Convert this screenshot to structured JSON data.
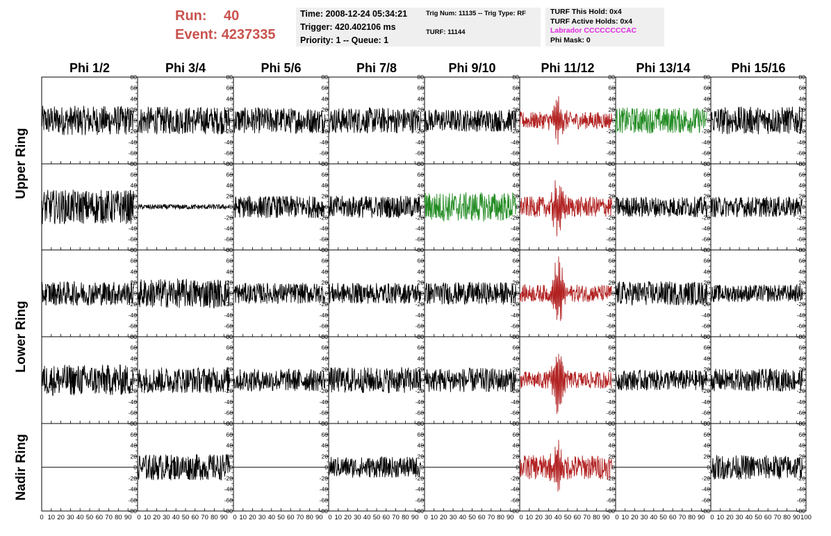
{
  "header": {
    "run_label": "Run:",
    "run_value": "40",
    "event_label": "Event:",
    "event_value": "4237335"
  },
  "time_box": {
    "time": "Time: 2008-12-24 05:34:21",
    "trigger": "Trigger: 420.402106 ms",
    "priority": "Priority: 1 -- Queue: 1"
  },
  "trig_box": {
    "trig_line": "Trig Num: 11135 -- Trig Type: RF",
    "turf_line": "TURF: 11144"
  },
  "turf_box": {
    "this_hold": "TURF This Hold: 0x4",
    "active_holds": "TURF Active Holds: 0x4",
    "labrador": "Labrador CCCCCCCCAC",
    "phi_mask": "Phi Mask: 0"
  },
  "colors": {
    "title_red": "#c9524e",
    "labrador_magenta": "#e028e0",
    "trace_black": "#000000",
    "trace_red": "#b22222",
    "trace_green": "#228b22",
    "box_bg": "#efefef"
  },
  "chart_data": {
    "type": "line",
    "columns": [
      "Phi 1/2",
      "Phi 3/4",
      "Phi 5/6",
      "Phi 7/8",
      "Phi 9/10",
      "Phi 11/12",
      "Phi 13/14",
      "Phi 15/16"
    ],
    "ring_labels": [
      {
        "label": "Upper Ring",
        "rows": [
          0,
          1
        ]
      },
      {
        "label": "Lower Ring",
        "rows": [
          2,
          3
        ]
      },
      {
        "label": "Nadir Ring",
        "rows": [
          4
        ]
      }
    ],
    "xlim": [
      0,
      100
    ],
    "ylim": [
      -80,
      80
    ],
    "xticks": [
      0,
      10,
      20,
      30,
      40,
      50,
      60,
      70,
      80,
      90,
      100
    ],
    "yticks": [
      -80,
      -60,
      -40,
      -20,
      0,
      20,
      40,
      60,
      80
    ],
    "trace_x_range": [
      0,
      96
    ],
    "grid": false,
    "panel_color": [
      [
        "black",
        "black",
        "black",
        "black",
        "black",
        "red",
        "green",
        "black"
      ],
      [
        "black",
        "black",
        "black",
        "black",
        "green",
        "red",
        "black",
        "black"
      ],
      [
        "black",
        "black",
        "black",
        "black",
        "black",
        "red",
        "black",
        "black"
      ],
      [
        "black",
        "black",
        "black",
        "black",
        "black",
        "red",
        "black",
        "black"
      ],
      [
        "black",
        "black",
        "black",
        "black",
        "black",
        "red",
        "black",
        "black"
      ]
    ],
    "panel_amplitude": [
      [
        17,
        16,
        15,
        15,
        13,
        10,
        15,
        16
      ],
      [
        20,
        3,
        13,
        13,
        17,
        12,
        12,
        12
      ],
      [
        14,
        17,
        12,
        12,
        13,
        10,
        14,
        10
      ],
      [
        18,
        15,
        13,
        15,
        14,
        10,
        12,
        13
      ],
      [
        0,
        15,
        0,
        12,
        0,
        14,
        0,
        14
      ]
    ],
    "panel_pulse": [
      [
        0,
        0,
        0,
        0,
        0,
        35,
        0,
        0
      ],
      [
        0,
        0,
        0,
        0,
        0,
        40,
        0,
        0
      ],
      [
        0,
        0,
        0,
        0,
        0,
        55,
        0,
        0
      ],
      [
        0,
        0,
        0,
        0,
        0,
        55,
        0,
        0
      ],
      [
        0,
        0,
        0,
        0,
        0,
        30,
        0,
        0
      ]
    ]
  }
}
